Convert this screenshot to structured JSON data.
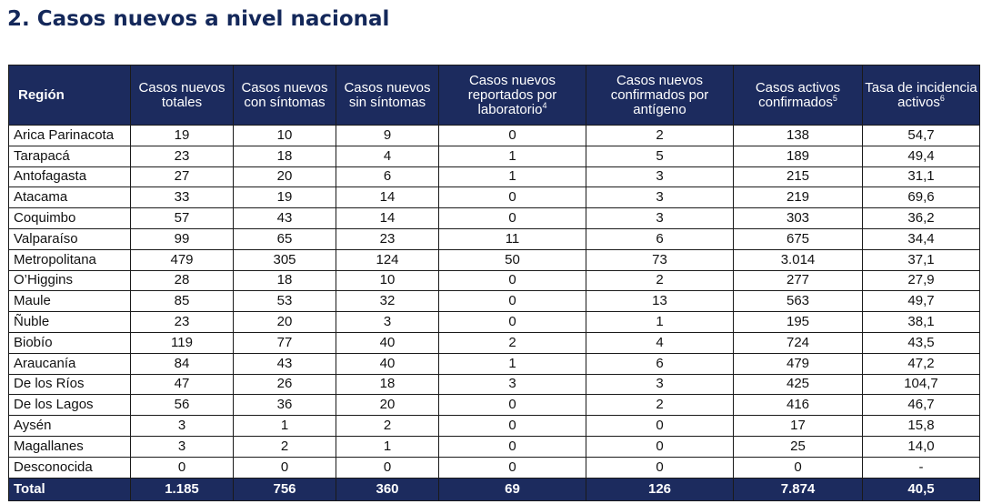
{
  "title": "2. Casos nuevos a nivel nacional",
  "table": {
    "headers": [
      {
        "lines": [
          "Región"
        ],
        "sup": ""
      },
      {
        "lines": [
          "Casos nuevos",
          "totales"
        ],
        "sup": ""
      },
      {
        "lines": [
          "Casos nuevos",
          "con síntomas"
        ],
        "sup": ""
      },
      {
        "lines": [
          "Casos nuevos",
          "sin síntomas"
        ],
        "sup": ""
      },
      {
        "lines": [
          "Casos nuevos",
          "reportados por",
          "laboratorio"
        ],
        "sup": "4"
      },
      {
        "lines": [
          "Casos nuevos",
          "confirmados por",
          "antígeno"
        ],
        "sup": ""
      },
      {
        "lines": [
          "Casos activos",
          "confirmados"
        ],
        "sup": "5"
      },
      {
        "lines": [
          "Tasa de incidencia",
          "activos"
        ],
        "sup": "6"
      }
    ],
    "rows": [
      [
        "Arica Parinacota",
        "19",
        "10",
        "9",
        "0",
        "2",
        "138",
        "54,7"
      ],
      [
        "Tarapacá",
        "23",
        "18",
        "4",
        "1",
        "5",
        "189",
        "49,4"
      ],
      [
        "Antofagasta",
        "27",
        "20",
        "6",
        "1",
        "3",
        "215",
        "31,1"
      ],
      [
        "Atacama",
        "33",
        "19",
        "14",
        "0",
        "3",
        "219",
        "69,6"
      ],
      [
        "Coquimbo",
        "57",
        "43",
        "14",
        "0",
        "3",
        "303",
        "36,2"
      ],
      [
        "Valparaíso",
        "99",
        "65",
        "23",
        "11",
        "6",
        "675",
        "34,4"
      ],
      [
        "Metropolitana",
        "479",
        "305",
        "124",
        "50",
        "73",
        "3.014",
        "37,1"
      ],
      [
        "O’Higgins",
        "28",
        "18",
        "10",
        "0",
        "2",
        "277",
        "27,9"
      ],
      [
        "Maule",
        "85",
        "53",
        "32",
        "0",
        "13",
        "563",
        "49,7"
      ],
      [
        "Ñuble",
        "23",
        "20",
        "3",
        "0",
        "1",
        "195",
        "38,1"
      ],
      [
        "Biobío",
        "119",
        "77",
        "40",
        "2",
        "4",
        "724",
        "43,5"
      ],
      [
        "Araucanía",
        "84",
        "43",
        "40",
        "1",
        "6",
        "479",
        "47,2"
      ],
      [
        "De los Ríos",
        "47",
        "26",
        "18",
        "3",
        "3",
        "425",
        "104,7"
      ],
      [
        "De los Lagos",
        "56",
        "36",
        "20",
        "0",
        "2",
        "416",
        "46,7"
      ],
      [
        "Aysén",
        "3",
        "1",
        "2",
        "0",
        "0",
        "17",
        "15,8"
      ],
      [
        "Magallanes",
        "3",
        "2",
        "1",
        "0",
        "0",
        "25",
        "14,0"
      ],
      [
        "Desconocida",
        "0",
        "0",
        "0",
        "0",
        "0",
        "0",
        "-"
      ]
    ],
    "total": [
      "Total",
      "1.185",
      "756",
      "360",
      "69",
      "126",
      "7.874",
      "40,5"
    ]
  }
}
